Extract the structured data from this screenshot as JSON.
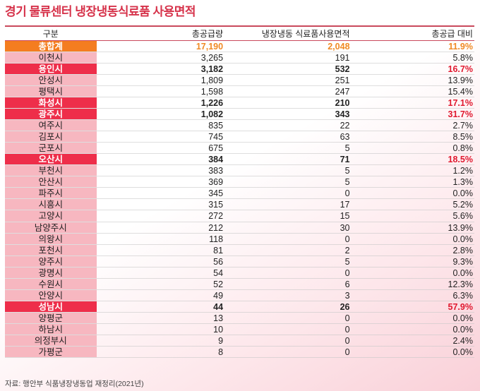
{
  "title": "경기 물류센터 냉장냉동식료품 사용면적",
  "headers": [
    "구분",
    "총공급량",
    "냉장냉동 식료품사용면적",
    "총공급 대비"
  ],
  "rows": [
    {
      "name": "총합계",
      "supply": "17,190",
      "area": "2,048",
      "ratio": "11.9%",
      "type": "total"
    },
    {
      "name": "이천시",
      "supply": "3,265",
      "area": "191",
      "ratio": "5.8%",
      "type": ""
    },
    {
      "name": "용인시",
      "supply": "3,182",
      "area": "532",
      "ratio": "16.7%",
      "type": "hl"
    },
    {
      "name": "안성시",
      "supply": "1,809",
      "area": "251",
      "ratio": "13.9%",
      "type": ""
    },
    {
      "name": "평택시",
      "supply": "1,598",
      "area": "247",
      "ratio": "15.4%",
      "type": ""
    },
    {
      "name": "화성시",
      "supply": "1,226",
      "area": "210",
      "ratio": "17.1%",
      "type": "hl"
    },
    {
      "name": "광주시",
      "supply": "1,082",
      "area": "343",
      "ratio": "31.7%",
      "type": "hl"
    },
    {
      "name": "여주시",
      "supply": "835",
      "area": "22",
      "ratio": "2.7%",
      "type": ""
    },
    {
      "name": "김포시",
      "supply": "745",
      "area": "63",
      "ratio": "8.5%",
      "type": ""
    },
    {
      "name": "군포시",
      "supply": "675",
      "area": "5",
      "ratio": "0.8%",
      "type": ""
    },
    {
      "name": "오산시",
      "supply": "384",
      "area": "71",
      "ratio": "18.5%",
      "type": "hl"
    },
    {
      "name": "부천시",
      "supply": "383",
      "area": "5",
      "ratio": "1.2%",
      "type": ""
    },
    {
      "name": "안산시",
      "supply": "369",
      "area": "5",
      "ratio": "1.3%",
      "type": ""
    },
    {
      "name": "파주시",
      "supply": "345",
      "area": "0",
      "ratio": "0.0%",
      "type": ""
    },
    {
      "name": "시흥시",
      "supply": "315",
      "area": "17",
      "ratio": "5.2%",
      "type": ""
    },
    {
      "name": "고양시",
      "supply": "272",
      "area": "15",
      "ratio": "5.6%",
      "type": ""
    },
    {
      "name": "남양주시",
      "supply": "212",
      "area": "30",
      "ratio": "13.9%",
      "type": ""
    },
    {
      "name": "의왕시",
      "supply": "118",
      "area": "0",
      "ratio": "0.0%",
      "type": ""
    },
    {
      "name": "포천시",
      "supply": "81",
      "area": "2",
      "ratio": "2.8%",
      "type": ""
    },
    {
      "name": "양주시",
      "supply": "56",
      "area": "5",
      "ratio": "9.3%",
      "type": ""
    },
    {
      "name": "광명시",
      "supply": "54",
      "area": "0",
      "ratio": "0.0%",
      "type": ""
    },
    {
      "name": "수원시",
      "supply": "52",
      "area": "6",
      "ratio": "12.3%",
      "type": ""
    },
    {
      "name": "안양시",
      "supply": "49",
      "area": "3",
      "ratio": "6.3%",
      "type": ""
    },
    {
      "name": "성남시",
      "supply": "44",
      "area": "26",
      "ratio": "57.9%",
      "type": "hl"
    },
    {
      "name": "양평군",
      "supply": "13",
      "area": "0",
      "ratio": "0.0%",
      "type": ""
    },
    {
      "name": "하남시",
      "supply": "10",
      "area": "0",
      "ratio": "0.0%",
      "type": ""
    },
    {
      "name": "의정부시",
      "supply": "9",
      "area": "0",
      "ratio": "2.4%",
      "type": ""
    },
    {
      "name": "가평군",
      "supply": "8",
      "area": "0",
      "ratio": "0.0%",
      "type": ""
    }
  ],
  "source": "자료: 행안부 식품냉장냉동업 재정리(2021년)"
}
